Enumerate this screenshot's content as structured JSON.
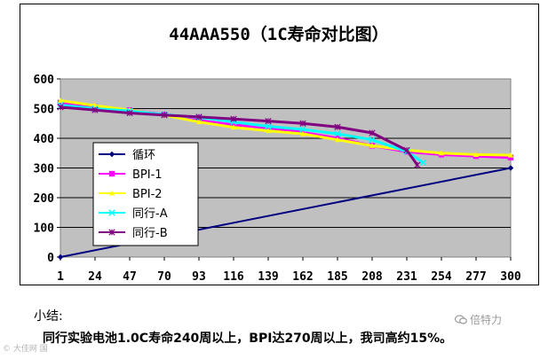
{
  "chart_data": {
    "type": "line",
    "title": "44AAA550（1C寿命对比图）",
    "x_ticks": [
      "1",
      "24",
      "47",
      "70",
      "93",
      "116",
      "139",
      "162",
      "185",
      "208",
      "231",
      "254",
      "277",
      "300"
    ],
    "y_ticks": [
      "0",
      "100",
      "200",
      "300",
      "400",
      "500",
      "600"
    ],
    "ylim": [
      0,
      600
    ],
    "xlim": [
      1,
      300
    ],
    "legend_position": "left-center",
    "grid": "horizontal",
    "series": [
      {
        "name": "循环",
        "color": "#000080",
        "marker": "diamond",
        "x": [
          1,
          300
        ],
        "y": [
          0,
          300
        ]
      },
      {
        "name": "BPI-1",
        "color": "#ff00ff",
        "marker": "square",
        "x": [
          1,
          24,
          47,
          70,
          93,
          116,
          139,
          162,
          185,
          208,
          231,
          254,
          277,
          300
        ],
        "y": [
          520,
          505,
          495,
          480,
          460,
          445,
          435,
          420,
          400,
          375,
          355,
          345,
          340,
          335
        ]
      },
      {
        "name": "BPI-2",
        "color": "#ffff00",
        "marker": "triangle",
        "x": [
          1,
          24,
          47,
          70,
          93,
          116,
          139,
          162,
          185,
          208,
          231,
          254,
          277,
          300
        ],
        "y": [
          527,
          510,
          495,
          478,
          455,
          437,
          425,
          415,
          395,
          375,
          360,
          350,
          345,
          343
        ]
      },
      {
        "name": "同行-A",
        "color": "#00ffff",
        "marker": "x",
        "x": [
          1,
          24,
          47,
          70,
          93,
          116,
          139,
          162,
          185,
          208,
          231,
          242
        ],
        "y": [
          512,
          500,
          492,
          480,
          470,
          455,
          440,
          430,
          415,
          395,
          355,
          318
        ]
      },
      {
        "name": "同行-B",
        "color": "#800080",
        "marker": "star",
        "x": [
          1,
          24,
          47,
          70,
          93,
          116,
          139,
          162,
          185,
          208,
          231,
          238
        ],
        "y": [
          505,
          495,
          485,
          478,
          472,
          465,
          458,
          450,
          438,
          418,
          360,
          310
        ]
      }
    ]
  },
  "summary": {
    "title": "小结:",
    "text": "同行实验电池1.0C寿命240周以上，BPI达270周以上，我司高约15%。"
  },
  "watermarks": {
    "top_right": "倍特力",
    "bottom_left": "大佳网 国"
  }
}
